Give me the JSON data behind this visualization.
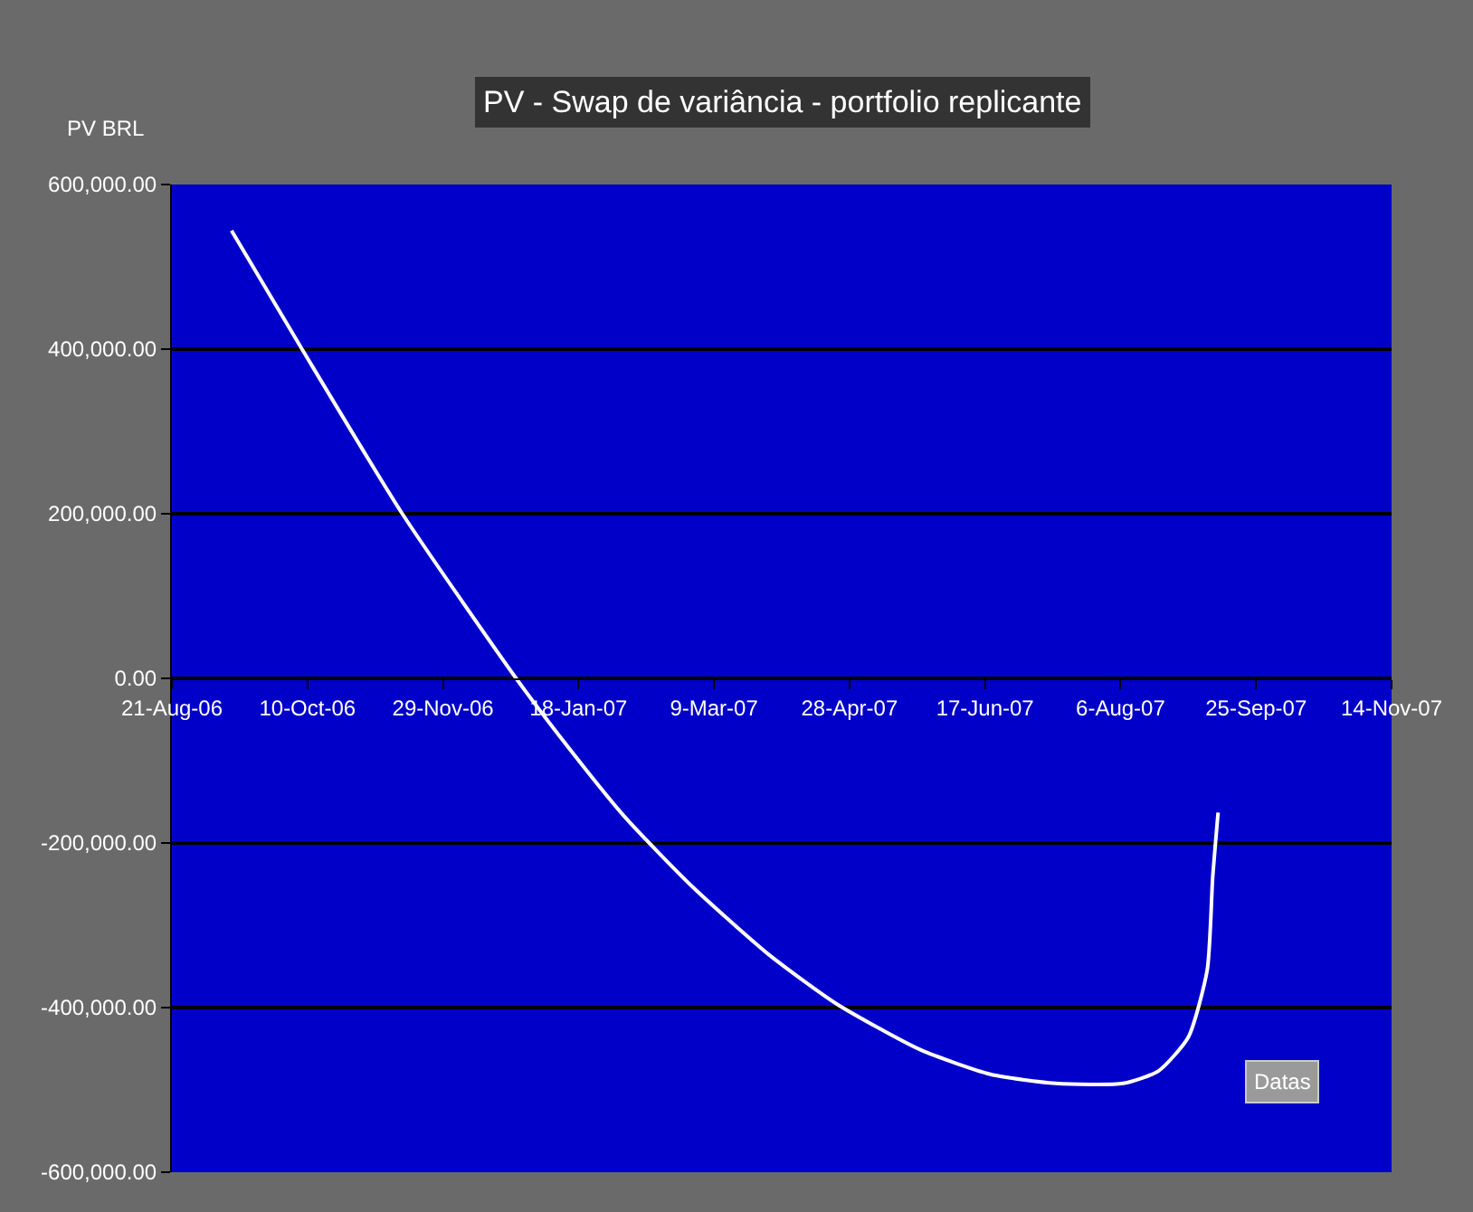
{
  "chart_data": {
    "type": "line",
    "title": "PV - Swap de variância - portfolio replicante",
    "ylabel": "PV BRL",
    "xlabel": "Datas",
    "x": [
      "2006-09-12",
      "2006-10-08",
      "2006-11-14",
      "2006-12-26",
      "2007-01-11",
      "2007-02-04",
      "2007-03-01",
      "2007-03-29",
      "2007-04-23",
      "2007-05-24",
      "2007-06-19",
      "2007-07-13",
      "2007-08-07",
      "2007-08-20",
      "2007-08-31",
      "2007-09-07",
      "2007-09-09",
      "2007-09-11"
    ],
    "series": [
      {
        "color": "#ffffff",
        "values": [
          544000,
          400000,
          200000,
          0,
          -70000,
          -168000,
          -253000,
          -335000,
          -395000,
          -451000,
          -481000,
          -492000,
          -492000,
          -477000,
          -436000,
          -354000,
          -242000,
          -163000
        ]
      }
    ],
    "xlim": [
      "2006-08-21",
      "2007-11-14"
    ],
    "xticks": [
      {
        "value": "2006-08-21",
        "label": "21-Aug-06"
      },
      {
        "value": "2006-10-10",
        "label": "10-Oct-06"
      },
      {
        "value": "2006-11-29",
        "label": "29-Nov-06"
      },
      {
        "value": "2007-01-18",
        "label": "18-Jan-07"
      },
      {
        "value": "2007-03-09",
        "label": "9-Mar-07"
      },
      {
        "value": "2007-04-28",
        "label": "28-Apr-07"
      },
      {
        "value": "2007-06-17",
        "label": "17-Jun-07"
      },
      {
        "value": "2007-08-06",
        "label": "6-Aug-07"
      },
      {
        "value": "2007-09-25",
        "label": "25-Sep-07"
      },
      {
        "value": "2007-11-14",
        "label": "14-Nov-07"
      }
    ],
    "ylim": [
      -600000,
      600000
    ],
    "yticks": [
      {
        "value": -600000,
        "label": "-600,000.00"
      },
      {
        "value": -400000,
        "label": "-400,000.00"
      },
      {
        "value": -200000,
        "label": "-200,000.00"
      },
      {
        "value": 0,
        "label": "0.00"
      },
      {
        "value": 200000,
        "label": "200,000.00"
      },
      {
        "value": 400000,
        "label": "400,000.00"
      },
      {
        "value": 600000,
        "label": "600,000.00"
      }
    ],
    "grid": "y",
    "marker": "none",
    "line_style": "solid"
  }
}
